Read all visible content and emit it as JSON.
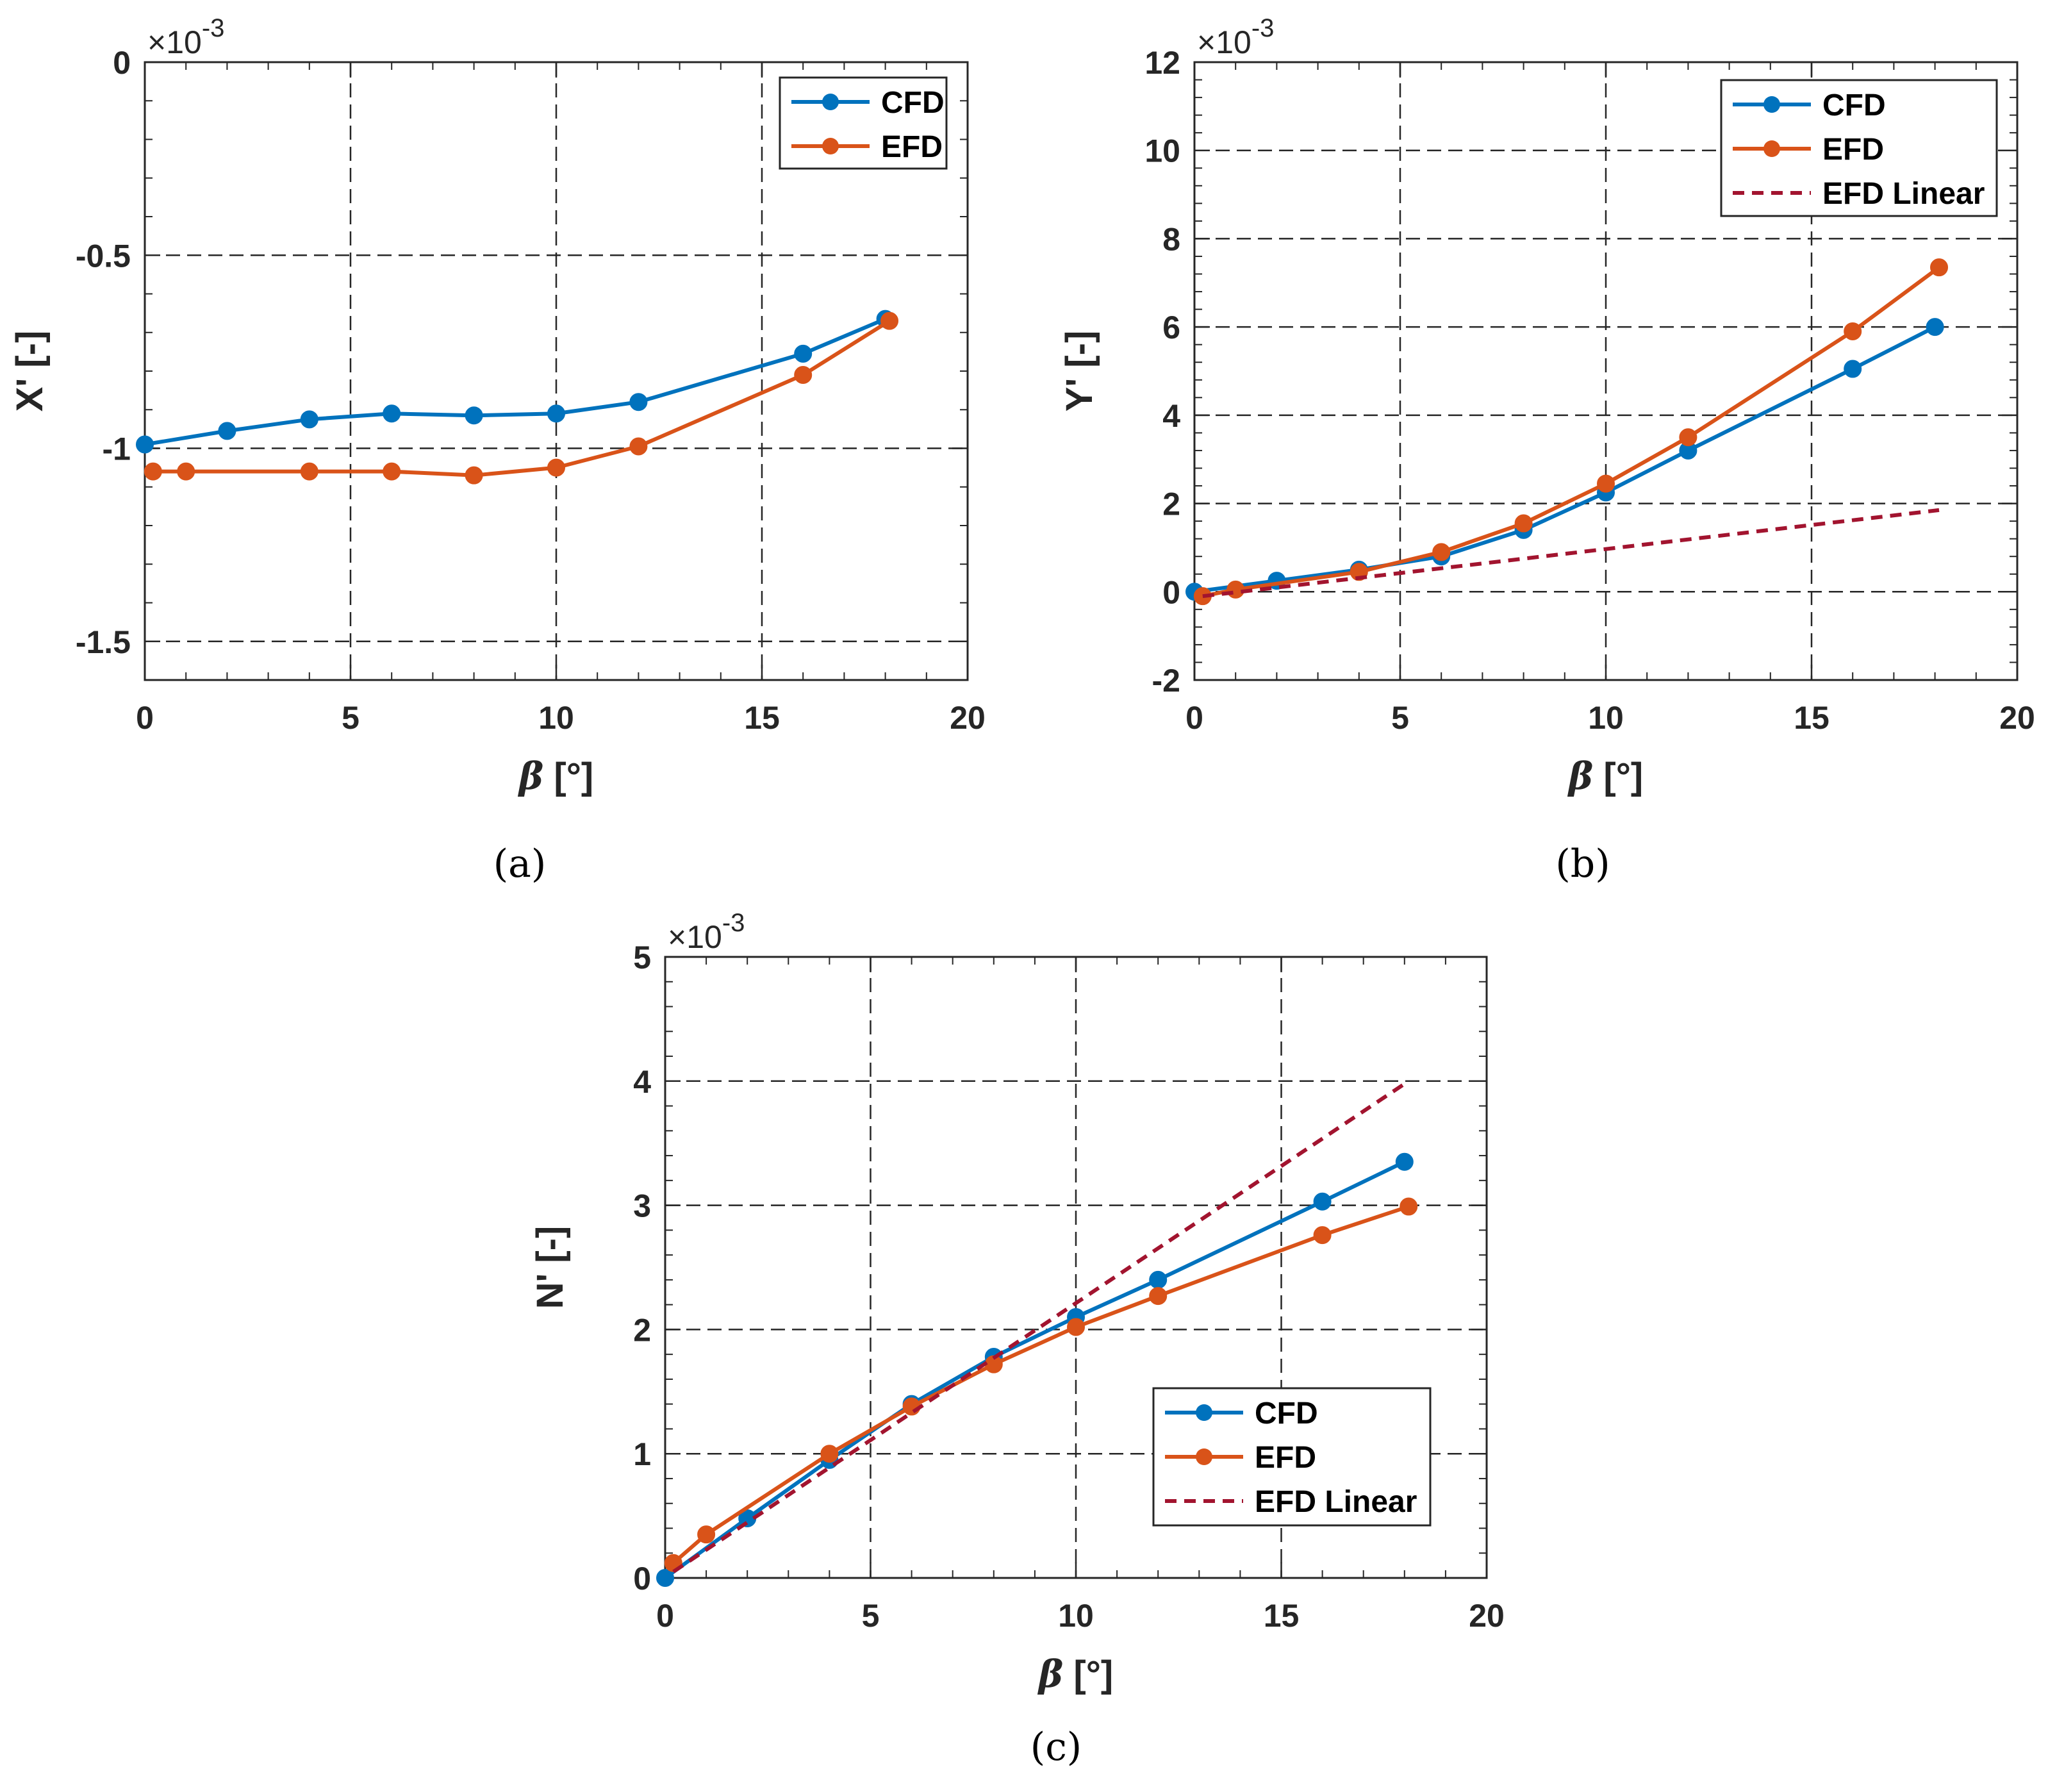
{
  "chart_data": [
    {
      "type": "line",
      "caption": "(a)",
      "xlabel": "β [°]",
      "ylabel": "X' [-]",
      "exponent": "×10-3",
      "xlim": [
        0,
        20
      ],
      "ylim": [
        -1.6,
        0
      ],
      "xticks": [
        0,
        5,
        10,
        15,
        20
      ],
      "yticks": [
        -1.5,
        -1,
        -0.5,
        0
      ],
      "ytick_labels": [
        "-1.5",
        "-1",
        "-0.5",
        "0"
      ],
      "grid": true,
      "legend": "top-right",
      "series": [
        {
          "name": "CFD",
          "color": "#0072BD",
          "style": "solid-marker",
          "x": [
            0,
            2,
            4,
            6,
            8,
            10,
            12,
            16,
            18
          ],
          "y": [
            -0.99,
            -0.955,
            -0.925,
            -0.91,
            -0.915,
            -0.91,
            -0.88,
            -0.755,
            -0.665
          ]
        },
        {
          "name": "EFD",
          "color": "#D95319",
          "style": "solid-marker",
          "x": [
            0.2,
            1,
            4,
            6,
            8,
            10,
            12,
            16,
            18.1
          ],
          "y": [
            -1.06,
            -1.06,
            -1.06,
            -1.06,
            -1.07,
            -1.05,
            -0.995,
            -0.81,
            -0.67
          ]
        }
      ]
    },
    {
      "type": "line",
      "caption": "(b)",
      "xlabel": "β [°]",
      "ylabel": "Y' [-]",
      "exponent": "×10-3",
      "xlim": [
        0,
        20
      ],
      "ylim": [
        -2,
        12
      ],
      "xticks": [
        0,
        5,
        10,
        15,
        20
      ],
      "yticks": [
        -2,
        0,
        2,
        4,
        6,
        8,
        10,
        12
      ],
      "ytick_labels": [
        "-2",
        "0",
        "2",
        "4",
        "6",
        "8",
        "10",
        "12"
      ],
      "grid": true,
      "legend": "top-right",
      "series": [
        {
          "name": "CFD",
          "color": "#0072BD",
          "style": "solid-marker",
          "x": [
            0,
            2,
            4,
            6,
            8,
            10,
            12,
            16,
            18
          ],
          "y": [
            0.0,
            0.25,
            0.5,
            0.8,
            1.4,
            2.25,
            3.2,
            5.05,
            6.0
          ]
        },
        {
          "name": "EFD",
          "color": "#D95319",
          "style": "solid-marker",
          "x": [
            0.2,
            1,
            4,
            6,
            8,
            10,
            12,
            16,
            18.1
          ],
          "y": [
            -0.1,
            0.05,
            0.45,
            0.9,
            1.55,
            2.45,
            3.5,
            5.9,
            7.35
          ]
        },
        {
          "name": "EFD Linear",
          "color": "#A2142F",
          "style": "dashed",
          "x": [
            0.2,
            18.1
          ],
          "y": [
            -0.1,
            1.85
          ]
        }
      ]
    },
    {
      "type": "line",
      "caption": "(c)",
      "xlabel": "β [°]",
      "ylabel": "N' [-]",
      "exponent": "×10-3",
      "xlim": [
        0,
        20
      ],
      "ylim": [
        0,
        5
      ],
      "xticks": [
        0,
        5,
        10,
        15,
        20
      ],
      "yticks": [
        0,
        1,
        2,
        3,
        4,
        5
      ],
      "ytick_labels": [
        "0",
        "1",
        "2",
        "3",
        "4",
        "5"
      ],
      "grid": true,
      "legend": "bottom-right",
      "series": [
        {
          "name": "CFD",
          "color": "#0072BD",
          "style": "solid-marker",
          "x": [
            0,
            2,
            4,
            6,
            8,
            10,
            12,
            16,
            18
          ],
          "y": [
            0.0,
            0.48,
            0.95,
            1.4,
            1.78,
            2.1,
            2.4,
            3.03,
            3.35
          ]
        },
        {
          "name": "EFD",
          "color": "#D95319",
          "style": "solid-marker",
          "x": [
            0.2,
            1,
            4,
            6,
            8,
            10,
            12,
            16,
            18.1
          ],
          "y": [
            0.12,
            0.35,
            1.0,
            1.38,
            1.72,
            2.02,
            2.27,
            2.76,
            2.99
          ]
        },
        {
          "name": "EFD Linear",
          "color": "#A2142F",
          "style": "dashed",
          "x": [
            0.2,
            18.1
          ],
          "y": [
            0.05,
            4.0
          ]
        }
      ]
    }
  ]
}
